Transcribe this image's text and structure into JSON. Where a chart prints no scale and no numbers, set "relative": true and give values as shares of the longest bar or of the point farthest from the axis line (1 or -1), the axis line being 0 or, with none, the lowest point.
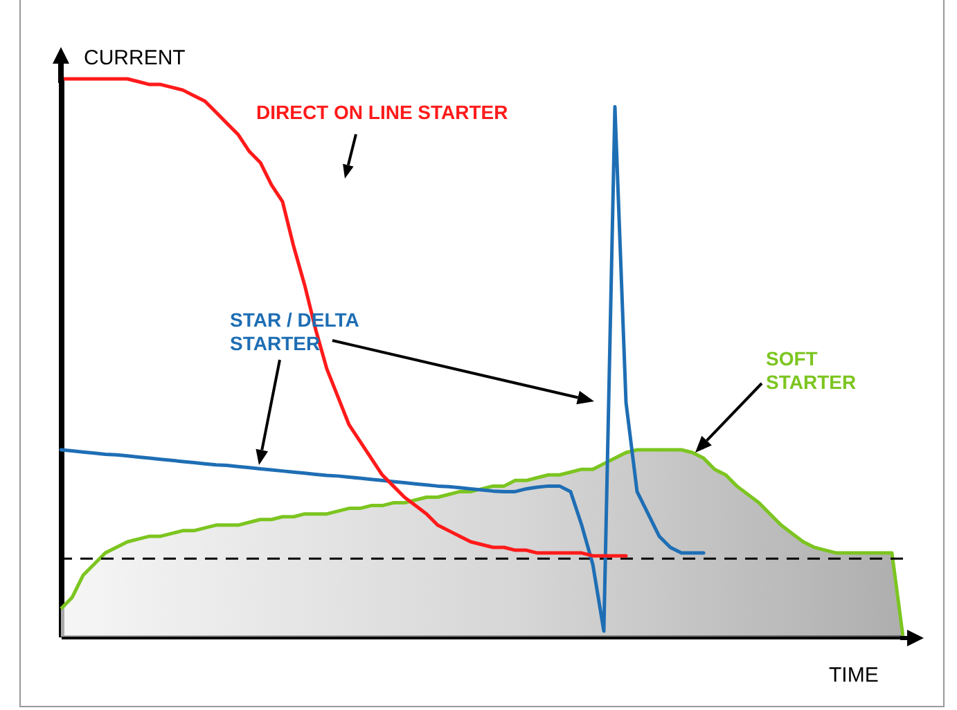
{
  "chart_data": {
    "type": "line",
    "relative": true,
    "xlabel": "TIME",
    "ylabel": "CURRENT",
    "categories": [
      null,
      null,
      null,
      null,
      null,
      null,
      null,
      null,
      null,
      null,
      null,
      null,
      null,
      null,
      null,
      null,
      null,
      null,
      null,
      null,
      null,
      null,
      null,
      null,
      null,
      null,
      null,
      null,
      null,
      null,
      null,
      null,
      null,
      null,
      null,
      null,
      null,
      null,
      null,
      null,
      null,
      null,
      null,
      null,
      null,
      null,
      null,
      null,
      null,
      null,
      null,
      null,
      null,
      null,
      null,
      null,
      null,
      null,
      null,
      null,
      null,
      null,
      null,
      null,
      null,
      null,
      null,
      null,
      null,
      null,
      null,
      null,
      null,
      null,
      null,
      null,
      null
    ],
    "series": [
      {
        "name": "SOFT STARTER",
        "type": "area",
        "color": "#7cc520",
        "values": [
          0.05,
          0.07,
          0.11,
          0.13,
          0.15,
          0.16,
          0.17,
          0.175,
          0.18,
          0.18,
          0.185,
          0.19,
          0.19,
          0.195,
          0.2,
          0.2,
          0.2,
          0.205,
          0.21,
          0.21,
          0.215,
          0.215,
          0.22,
          0.22,
          0.22,
          0.225,
          0.23,
          0.23,
          0.235,
          0.235,
          0.24,
          0.24,
          0.245,
          0.25,
          0.25,
          0.255,
          0.26,
          0.26,
          0.265,
          0.27,
          0.27,
          0.28,
          0.28,
          0.285,
          0.29,
          0.29,
          0.295,
          0.3,
          0.3,
          0.31,
          0.32,
          0.33,
          0.335,
          0.335,
          0.335,
          0.335,
          0.335,
          0.33,
          0.32,
          0.3,
          0.29,
          0.27,
          0.255,
          0.24,
          0.22,
          0.2,
          0.185,
          0.17,
          0.16,
          0.155,
          0.15,
          0.15,
          0.15,
          0.15,
          0.15,
          0.15,
          0
        ]
      },
      {
        "name": "STAR / DELTA STARTER",
        "color": "#1e6eb4",
        "values": [
          0.335,
          0.333,
          0.331,
          0.329,
          0.327,
          0.326,
          0.324,
          0.322,
          0.32,
          0.318,
          0.316,
          0.314,
          0.312,
          0.31,
          0.308,
          0.307,
          0.305,
          0.303,
          0.301,
          0.299,
          0.297,
          0.295,
          0.293,
          0.291,
          0.289,
          0.288,
          0.286,
          0.284,
          0.282,
          0.28,
          0.278,
          0.276,
          0.274,
          0.272,
          0.27,
          0.269,
          0.267,
          0.265,
          0.263,
          0.261,
          0.26,
          0.26,
          0.265,
          0.268,
          0.27,
          0.27,
          0.26,
          0.2,
          0.13,
          0.01,
          0.95,
          0.42,
          0.26,
          0.22,
          0.18,
          0.16,
          0.15,
          0.15,
          0.15,
          null,
          null,
          null,
          null,
          null,
          null,
          null,
          null,
          null,
          null,
          null,
          null,
          null,
          null,
          null,
          null,
          null,
          null
        ]
      },
      {
        "name": "DIRECT ON LINE STARTER",
        "color": "#ff1a1a",
        "values": [
          1,
          1,
          1,
          1,
          1,
          1,
          1,
          0.995,
          0.99,
          0.99,
          0.985,
          0.98,
          0.97,
          0.96,
          0.94,
          0.92,
          0.9,
          0.87,
          0.85,
          0.81,
          0.78,
          0.7,
          0.63,
          0.55,
          0.48,
          0.43,
          0.38,
          0.35,
          0.32,
          0.29,
          0.27,
          0.25,
          0.235,
          0.22,
          0.2,
          0.19,
          0.18,
          0.17,
          0.165,
          0.16,
          0.16,
          0.155,
          0.155,
          0.15,
          0.15,
          0.15,
          0.15,
          0.15,
          0.145,
          0.145,
          0.145,
          0.145,
          null,
          null,
          null,
          null,
          null,
          null,
          null,
          null,
          null,
          null,
          null,
          null,
          null,
          null,
          null,
          null,
          null,
          null,
          null,
          null,
          null,
          null,
          null,
          null,
          null
        ]
      }
    ],
    "ref_lines": [
      {
        "axis": "y",
        "value": 0.14,
        "color": "#000000",
        "line_style": "dashed"
      }
    ]
  }
}
